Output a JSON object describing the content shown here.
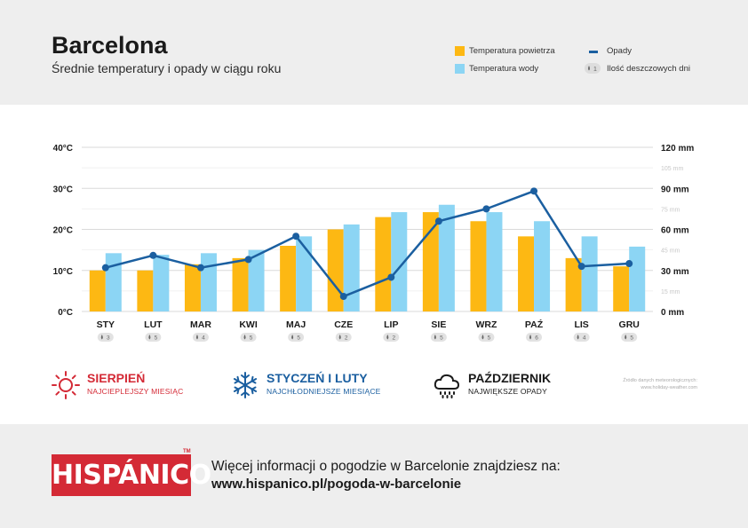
{
  "header": {
    "title": "Barcelona",
    "subtitle": "Średnie temperatury i opady w ciągu roku"
  },
  "legend": {
    "air_temp": "Temperatura powietrza",
    "water_temp": "Temperatura wody",
    "precip": "Opady",
    "rain_days": "Ilość deszczowych dni",
    "rain_days_badge": "1"
  },
  "colors": {
    "air_temp": "#fdb813",
    "water_temp": "#8cd5f4",
    "precip": "#1b5fa0",
    "hot": "#d42a36",
    "cold": "#1b5fa0",
    "rain": "#1a1a1a",
    "brand": "#d42a36"
  },
  "chart_data": {
    "type": "bar",
    "categories": [
      "STY",
      "LUT",
      "MAR",
      "KWI",
      "MAJ",
      "CZE",
      "LIP",
      "SIE",
      "WRZ",
      "PAŹ",
      "LIS",
      "GRU"
    ],
    "series": [
      {
        "name": "Temperatura powietrza",
        "type": "bar",
        "axis": "left",
        "values": [
          10,
          10,
          11.5,
          13,
          16,
          20,
          23,
          24.2,
          22,
          18.3,
          13,
          11
        ]
      },
      {
        "name": "Temperatura wody",
        "type": "bar",
        "axis": "left",
        "values": [
          14.2,
          13.8,
          14.2,
          15,
          18.3,
          21.2,
          24.2,
          26,
          24.2,
          22,
          18.3,
          15.8
        ]
      },
      {
        "name": "Opady",
        "type": "line",
        "axis": "right",
        "values": [
          32,
          41,
          32,
          38,
          55,
          11,
          25,
          66,
          75,
          88,
          33,
          35
        ]
      }
    ],
    "rain_days": [
      3,
      5,
      4,
      5,
      5,
      2,
      2,
      5,
      5,
      6,
      4,
      5
    ],
    "y_left": {
      "ticks": [
        "0°C",
        "10°C",
        "20°C",
        "30°C",
        "40°C"
      ],
      "ylim": [
        0,
        40
      ]
    },
    "y_right": {
      "ticks": [
        "0 mm",
        "15 mm",
        "30 mm",
        "45 mm",
        "60 mm",
        "75 mm",
        "90 mm",
        "105 mm",
        "120 mm"
      ],
      "ylim": [
        0,
        120
      ]
    },
    "grid": true
  },
  "features": {
    "hottest": {
      "title": "SIERPIEŃ",
      "subtitle": "NAJCIEPLEJSZY MIESIĄC",
      "icon": "sun-icon"
    },
    "coldest": {
      "title": "STYCZEŃ I LUTY",
      "subtitle": "NAJCHŁODNIEJSZE MIESIĄCE",
      "icon": "snowflake-icon"
    },
    "wettest": {
      "title": "PAŹDZIERNIK",
      "subtitle": "NAJWIĘKSZE OPADY",
      "icon": "rain-cloud-icon"
    }
  },
  "source": {
    "line1": "Źródło danych meteorologicznych:",
    "line2": "www.holiday-weather.com"
  },
  "footer": {
    "logo": "HISPÁNICO",
    "logo_tm": "TM",
    "info_text": "Więcej informacji o pogodzie w Barcelonie znajdziesz na:",
    "info_url": "www.hispanico.pl/pogoda-w-barcelonie"
  }
}
